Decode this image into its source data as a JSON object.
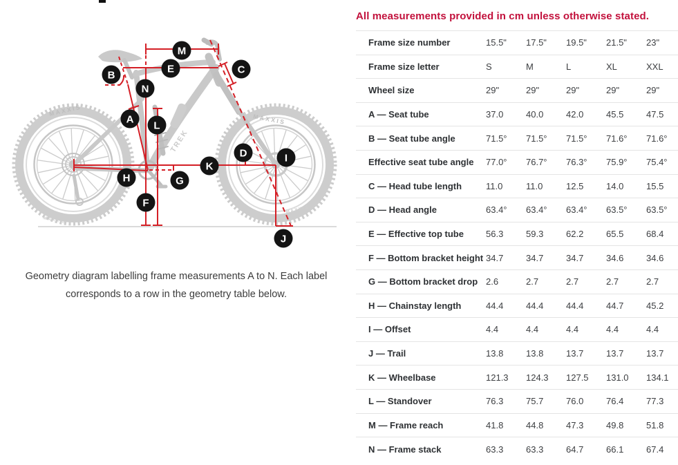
{
  "diagram": {
    "caption_line1": "Geometry diagram labelling frame measurements A to N. Each label",
    "caption_line2": "corresponds to a row in the geometry table below.",
    "labels": [
      "A",
      "B",
      "C",
      "D",
      "E",
      "F",
      "G",
      "H",
      "I",
      "J",
      "K",
      "L",
      "M",
      "N"
    ],
    "tire_brand": "MAXXIS",
    "frame_brand": "TREK"
  },
  "table": {
    "title": "All measurements provided in cm unless otherwise stated.",
    "rows": [
      {
        "label": "Frame size number",
        "values": [
          "15.5\"",
          "17.5\"",
          "19.5\"",
          "21.5\"",
          "23\""
        ]
      },
      {
        "label": "Frame size letter",
        "values": [
          "S",
          "M",
          "L",
          "XL",
          "XXL"
        ]
      },
      {
        "label": "Wheel size",
        "values": [
          "29\"",
          "29\"",
          "29\"",
          "29\"",
          "29\""
        ]
      },
      {
        "label": "A — Seat tube",
        "values": [
          "37.0",
          "40.0",
          "42.0",
          "45.5",
          "47.5"
        ]
      },
      {
        "label": "B — Seat tube angle",
        "values": [
          "71.5°",
          "71.5°",
          "71.5°",
          "71.6°",
          "71.6°"
        ]
      },
      {
        "label": "Effective seat tube angle",
        "values": [
          "77.0°",
          "76.7°",
          "76.3°",
          "75.9°",
          "75.4°"
        ]
      },
      {
        "label": "C — Head tube length",
        "values": [
          "11.0",
          "11.0",
          "12.5",
          "14.0",
          "15.5"
        ]
      },
      {
        "label": "D — Head angle",
        "values": [
          "63.4°",
          "63.4°",
          "63.4°",
          "63.5°",
          "63.5°"
        ]
      },
      {
        "label": "E — Effective top tube",
        "values": [
          "56.3",
          "59.3",
          "62.2",
          "65.5",
          "68.4"
        ]
      },
      {
        "label": "F — Bottom bracket height",
        "values": [
          "34.7",
          "34.7",
          "34.7",
          "34.6",
          "34.6"
        ]
      },
      {
        "label": "G — Bottom bracket drop",
        "values": [
          "2.6",
          "2.7",
          "2.7",
          "2.7",
          "2.7"
        ]
      },
      {
        "label": "H — Chainstay length",
        "values": [
          "44.4",
          "44.4",
          "44.4",
          "44.7",
          "45.2"
        ]
      },
      {
        "label": "I — Offset",
        "values": [
          "4.4",
          "4.4",
          "4.4",
          "4.4",
          "4.4"
        ]
      },
      {
        "label": "J — Trail",
        "values": [
          "13.8",
          "13.8",
          "13.7",
          "13.7",
          "13.7"
        ]
      },
      {
        "label": "K — Wheelbase",
        "values": [
          "121.3",
          "124.3",
          "127.5",
          "131.0",
          "134.1"
        ]
      },
      {
        "label": "L — Standover",
        "values": [
          "76.3",
          "75.7",
          "76.0",
          "76.4",
          "77.3"
        ]
      },
      {
        "label": "M — Frame reach",
        "values": [
          "41.8",
          "44.8",
          "47.3",
          "49.8",
          "51.8"
        ]
      },
      {
        "label": "N — Frame stack",
        "values": [
          "63.3",
          "63.3",
          "64.7",
          "66.1",
          "67.4"
        ]
      }
    ]
  },
  "colors": {
    "measurement_line_red": "#d41f26",
    "title_red": "#c2113c",
    "label_circle": "#141414",
    "bike_grey": "#c9c9c9"
  }
}
